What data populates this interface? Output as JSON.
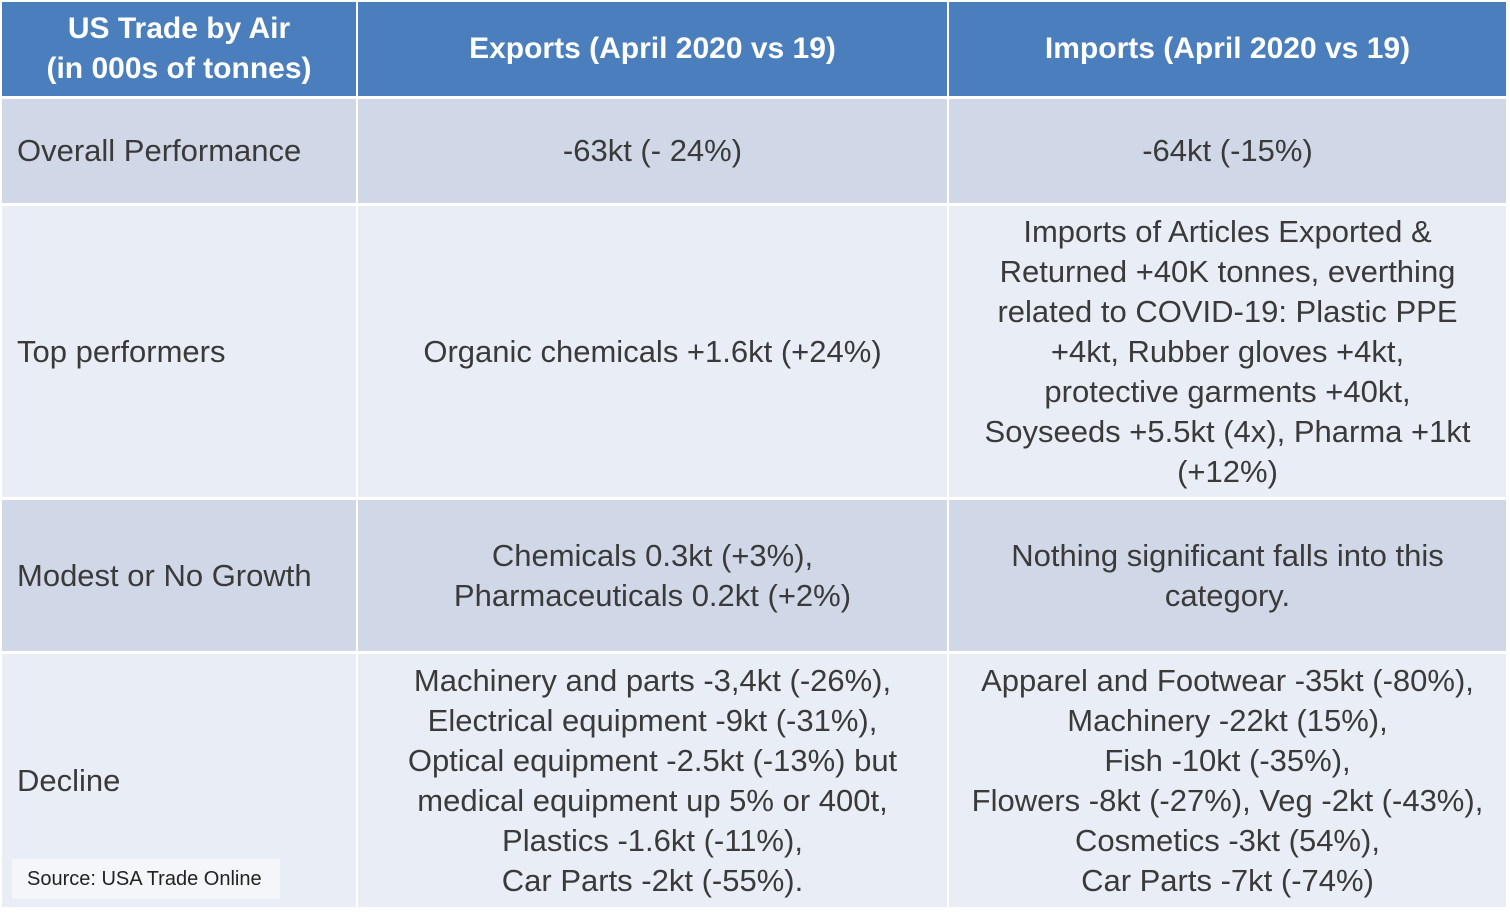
{
  "header": {
    "col1_line1": "US Trade by Air",
    "col1_line2": "(in 000s of tonnes)",
    "col2": "Exports (April 2020 vs 19)",
    "col3": "Imports (April 2020 vs 19)"
  },
  "rows": [
    {
      "label": "Overall Performance",
      "exports": [
        "-63kt (- 24%)"
      ],
      "imports": [
        "-64kt (-15%)"
      ]
    },
    {
      "label": "Top performers",
      "exports": [
        "Organic chemicals +1.6kt (+24%)"
      ],
      "imports": [
        "Imports of Articles Exported &",
        "Returned +40K tonnes, everthing",
        "related to COVID-19: Plastic PPE",
        "+4kt, Rubber gloves +4kt,",
        "protective garments +40kt,",
        "Soyseeds +5.5kt (4x), Pharma +1kt",
        "(+12%)"
      ]
    },
    {
      "label": "Modest or No Growth",
      "exports": [
        "Chemicals 0.3kt (+3%),",
        "Pharmaceuticals 0.2kt (+2%)"
      ],
      "imports": [
        "Nothing significant falls into this",
        "category."
      ]
    },
    {
      "label": "Decline",
      "exports": [
        "Machinery and parts -3,4kt (-26%),",
        "Electrical equipment -9kt (-31%),",
        "Optical equipment -2.5kt (-13%) but",
        "medical equipment up 5% or 400t,",
        "Plastics -1.6kt (-11%),",
        "Car Parts -2kt (-55%)."
      ],
      "imports": [
        "Apparel and Footwear -35kt (-80%),",
        "Machinery -22kt (15%),",
        "Fish -10kt (-35%),",
        "Flowers -8kt (-27%), Veg -2kt (-43%),",
        "Cosmetics -3kt (54%),",
        "Car Parts -7kt (-74%)"
      ]
    }
  ],
  "source": "Source: USA Trade Online",
  "colors": {
    "header_bg": "#4a7ebd",
    "header_text": "#ffffff",
    "row_dark": "#d0d8e7",
    "row_light": "#e9edf5",
    "body_text": "#3a3a3a"
  }
}
